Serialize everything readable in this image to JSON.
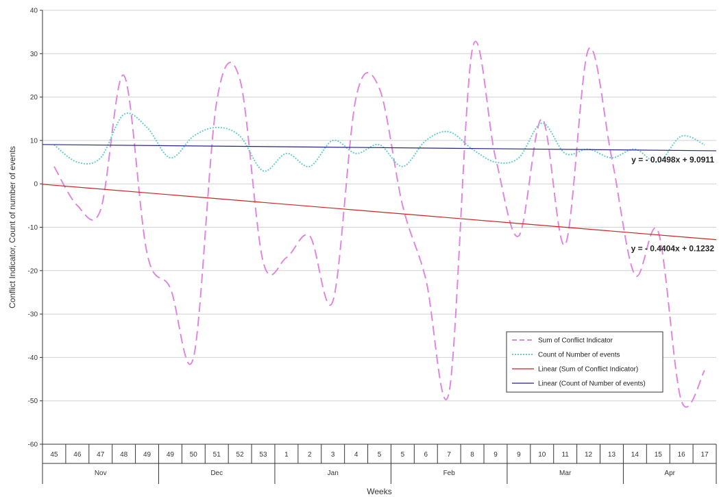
{
  "chart_data": {
    "type": "line",
    "xlabel": "Weeks",
    "ylabel": "Conflict Indicator, Count of number of events",
    "ylim": [
      -60,
      40
    ],
    "ytick_step": 10,
    "yticks": [
      "-60",
      "-50",
      "-40",
      "-30",
      "-20",
      "-10",
      "0",
      "10",
      "20",
      "30",
      "40"
    ],
    "grid": "horizontal",
    "legend_position": "bottom-right",
    "categories": [
      "45",
      "46",
      "47",
      "48",
      "49",
      "49",
      "50",
      "51",
      "52",
      "53",
      "1",
      "2",
      "3",
      "4",
      "5",
      "5",
      "6",
      "7",
      "8",
      "9",
      "9",
      "10",
      "11",
      "12",
      "13",
      "14",
      "15",
      "16",
      "17"
    ],
    "months": [
      {
        "label": "Nov",
        "start": 0,
        "end": 4
      },
      {
        "label": "Dec",
        "start": 5,
        "end": 9
      },
      {
        "label": "Jan",
        "start": 10,
        "end": 14
      },
      {
        "label": "Feb",
        "start": 15,
        "end": 19
      },
      {
        "label": "Mar",
        "start": 20,
        "end": 24
      },
      {
        "label": "Apr",
        "start": 25,
        "end": 28
      }
    ],
    "series": [
      {
        "name": "Sum of Conflict Indicator",
        "color": "#dd88dd",
        "style": "dashed",
        "values": [
          4,
          -5,
          -6,
          25,
          -16,
          -24,
          -40,
          19,
          24,
          -18,
          -17,
          -12,
          -27,
          20,
          22,
          -5,
          -22,
          -48,
          31,
          6,
          -12,
          15,
          -14,
          31,
          6,
          -21,
          -11,
          -50,
          -43
        ]
      },
      {
        "name": "Count of Number of events",
        "color": "#66cccc",
        "style": "dotted",
        "values": [
          9,
          5,
          6,
          16,
          13,
          6,
          11,
          13,
          11,
          3,
          7,
          4,
          10,
          7,
          9,
          4,
          10,
          12,
          8,
          5,
          6,
          14,
          7,
          8,
          6,
          8,
          5,
          11,
          9
        ]
      },
      {
        "name": "Linear (Sum of Conflict Indicator)",
        "color": "#cc2222",
        "style": "solid",
        "trend": {
          "slope": -0.4404,
          "intercept": 0.1232
        }
      },
      {
        "name": "Linear (Count of Number of events)",
        "color": "#222288",
        "style": "solid",
        "trend": {
          "slope": -0.0498,
          "intercept": 9.0911
        }
      }
    ],
    "annotations": [
      {
        "text": "y =  - 0.0498x + 9.0911",
        "anchor_series": 3
      },
      {
        "text": "y =  - 0.4404x + 0.1232",
        "anchor_series": 2
      }
    ]
  }
}
